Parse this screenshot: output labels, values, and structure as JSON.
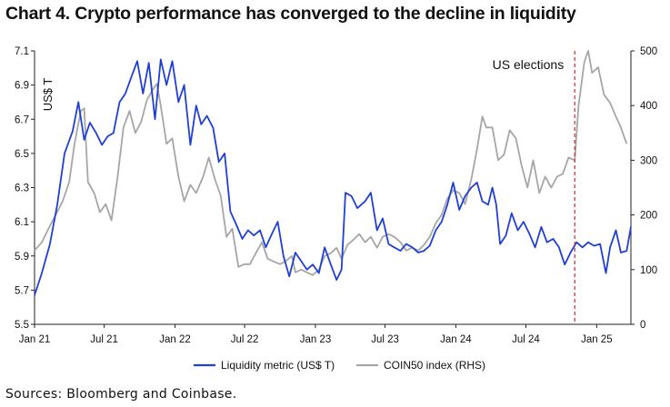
{
  "title": "Chart 4. Crypto performance has converged to the decline in liquidity",
  "source": "Sources: Bloomberg and Coinbase.",
  "chart_data": {
    "type": "line",
    "title": "Chart 4. Crypto performance has converged to the decline in liquidity",
    "left_axis": {
      "unit_label": "US$ T",
      "min": 5.5,
      "max": 7.1,
      "ticks": [
        "7.1",
        "6.9",
        "6.7",
        "6.5",
        "6.3",
        "6.1",
        "5.9",
        "5.7",
        "5.5"
      ]
    },
    "right_axis": {
      "min": 0,
      "max": 500,
      "ticks": [
        "500",
        "400",
        "300",
        "200",
        "100",
        "0"
      ]
    },
    "x_axis": {
      "min": "2021-01-01",
      "max": "2025-03-31",
      "ticks": [
        {
          "label": "Jan 21",
          "date": "2021-01-01"
        },
        {
          "label": "Jul 21",
          "date": "2021-07-01"
        },
        {
          "label": "Jan 22",
          "date": "2022-01-01"
        },
        {
          "label": "Jul 22",
          "date": "2022-07-01"
        },
        {
          "label": "Jan 23",
          "date": "2023-01-01"
        },
        {
          "label": "Jul 23",
          "date": "2023-07-01"
        },
        {
          "label": "Jan 24",
          "date": "2024-01-01"
        },
        {
          "label": "Jul 24",
          "date": "2024-07-01"
        },
        {
          "label": "Jan 25",
          "date": "2025-01-01"
        }
      ]
    },
    "grid": false,
    "legend_position": "bottom-center",
    "annotation": {
      "text": "US elections",
      "date": "2024-11-05",
      "style": "dashed",
      "color": "#d62728"
    },
    "series": [
      {
        "name": "Liquidity metric (US$ T)",
        "axis": "left",
        "color": "#1f3fd6",
        "points": [
          [
            "2021-01-01",
            5.67
          ],
          [
            "2021-01-20",
            5.8
          ],
          [
            "2021-02-10",
            5.97
          ],
          [
            "2021-03-01",
            6.2
          ],
          [
            "2021-03-20",
            6.5
          ],
          [
            "2021-04-10",
            6.63
          ],
          [
            "2021-04-25",
            6.8
          ],
          [
            "2021-05-10",
            6.58
          ],
          [
            "2021-05-25",
            6.68
          ],
          [
            "2021-06-10",
            6.62
          ],
          [
            "2021-06-25",
            6.55
          ],
          [
            "2021-07-10",
            6.6
          ],
          [
            "2021-07-25",
            6.62
          ],
          [
            "2021-08-10",
            6.8
          ],
          [
            "2021-08-25",
            6.85
          ],
          [
            "2021-09-10",
            6.95
          ],
          [
            "2021-09-25",
            7.04
          ],
          [
            "2021-10-10",
            6.85
          ],
          [
            "2021-10-25",
            7.03
          ],
          [
            "2021-11-10",
            6.7
          ],
          [
            "2021-11-25",
            7.05
          ],
          [
            "2021-12-10",
            6.9
          ],
          [
            "2021-12-25",
            7.04
          ],
          [
            "2022-01-10",
            6.8
          ],
          [
            "2022-01-25",
            6.9
          ],
          [
            "2022-02-10",
            6.55
          ],
          [
            "2022-02-25",
            6.78
          ],
          [
            "2022-03-10",
            6.67
          ],
          [
            "2022-03-25",
            6.72
          ],
          [
            "2022-04-10",
            6.65
          ],
          [
            "2022-04-25",
            6.45
          ],
          [
            "2022-05-10",
            6.5
          ],
          [
            "2022-05-25",
            6.16
          ],
          [
            "2022-06-10",
            6.08
          ],
          [
            "2022-06-25",
            6.0
          ],
          [
            "2022-07-10",
            6.05
          ],
          [
            "2022-07-25",
            6.02
          ],
          [
            "2022-08-10",
            6.05
          ],
          [
            "2022-08-25",
            5.95
          ],
          [
            "2022-09-10",
            6.03
          ],
          [
            "2022-09-25",
            6.1
          ],
          [
            "2022-10-10",
            5.9
          ],
          [
            "2022-10-25",
            5.78
          ],
          [
            "2022-11-10",
            5.92
          ],
          [
            "2022-11-25",
            5.87
          ],
          [
            "2022-12-10",
            5.82
          ],
          [
            "2022-12-25",
            5.85
          ],
          [
            "2023-01-10",
            5.8
          ],
          [
            "2023-01-25",
            5.95
          ],
          [
            "2023-02-10",
            5.85
          ],
          [
            "2023-02-25",
            5.76
          ],
          [
            "2023-03-10",
            5.82
          ],
          [
            "2023-03-20",
            6.27
          ],
          [
            "2023-04-05",
            6.25
          ],
          [
            "2023-04-20",
            6.18
          ],
          [
            "2023-05-10",
            6.22
          ],
          [
            "2023-05-25",
            6.27
          ],
          [
            "2023-06-10",
            6.05
          ],
          [
            "2023-06-25",
            6.12
          ],
          [
            "2023-07-10",
            5.97
          ],
          [
            "2023-07-25",
            5.95
          ],
          [
            "2023-08-10",
            5.93
          ],
          [
            "2023-08-25",
            5.97
          ],
          [
            "2023-09-10",
            5.95
          ],
          [
            "2023-09-25",
            5.92
          ],
          [
            "2023-10-10",
            5.93
          ],
          [
            "2023-10-25",
            5.96
          ],
          [
            "2023-11-10",
            6.05
          ],
          [
            "2023-11-25",
            6.1
          ],
          [
            "2023-12-10",
            6.2
          ],
          [
            "2023-12-25",
            6.33
          ],
          [
            "2024-01-10",
            6.17
          ],
          [
            "2024-01-25",
            6.25
          ],
          [
            "2024-02-10",
            6.3
          ],
          [
            "2024-02-25",
            6.33
          ],
          [
            "2024-03-10",
            6.22
          ],
          [
            "2024-03-25",
            6.2
          ],
          [
            "2024-04-05",
            6.3
          ],
          [
            "2024-04-15",
            6.2
          ],
          [
            "2024-04-25",
            5.97
          ],
          [
            "2024-05-10",
            6.02
          ],
          [
            "2024-05-25",
            6.15
          ],
          [
            "2024-06-10",
            6.05
          ],
          [
            "2024-06-25",
            6.1
          ],
          [
            "2024-07-10",
            6.03
          ],
          [
            "2024-07-25",
            5.95
          ],
          [
            "2024-08-10",
            6.07
          ],
          [
            "2024-08-25",
            5.98
          ],
          [
            "2024-09-10",
            6.0
          ],
          [
            "2024-09-25",
            5.95
          ],
          [
            "2024-10-10",
            5.85
          ],
          [
            "2024-10-25",
            5.92
          ],
          [
            "2024-11-10",
            5.98
          ],
          [
            "2024-11-25",
            5.95
          ],
          [
            "2024-12-10",
            5.98
          ],
          [
            "2024-12-25",
            5.96
          ],
          [
            "2025-01-10",
            5.97
          ],
          [
            "2025-01-25",
            5.8
          ],
          [
            "2025-02-05",
            5.95
          ],
          [
            "2025-02-20",
            6.05
          ],
          [
            "2025-03-05",
            5.92
          ],
          [
            "2025-03-20",
            5.93
          ],
          [
            "2025-03-31",
            6.07
          ]
        ]
      },
      {
        "name": "COIN50 index (RHS)",
        "axis": "right",
        "color": "#a6a6a6",
        "points": [
          [
            "2021-01-01",
            135
          ],
          [
            "2021-01-20",
            150
          ],
          [
            "2021-02-10",
            180
          ],
          [
            "2021-02-25",
            200
          ],
          [
            "2021-03-15",
            225
          ],
          [
            "2021-04-01",
            260
          ],
          [
            "2021-04-15",
            330
          ],
          [
            "2021-05-01",
            390
          ],
          [
            "2021-05-10",
            395
          ],
          [
            "2021-05-20",
            260
          ],
          [
            "2021-06-05",
            240
          ],
          [
            "2021-06-20",
            205
          ],
          [
            "2021-07-05",
            220
          ],
          [
            "2021-07-20",
            190
          ],
          [
            "2021-08-05",
            270
          ],
          [
            "2021-08-20",
            360
          ],
          [
            "2021-09-05",
            390
          ],
          [
            "2021-09-20",
            350
          ],
          [
            "2021-10-05",
            370
          ],
          [
            "2021-10-20",
            410
          ],
          [
            "2021-11-05",
            430
          ],
          [
            "2021-11-15",
            440
          ],
          [
            "2021-11-25",
            400
          ],
          [
            "2021-12-10",
            330
          ],
          [
            "2021-12-25",
            340
          ],
          [
            "2022-01-10",
            270
          ],
          [
            "2022-01-25",
            225
          ],
          [
            "2022-02-10",
            255
          ],
          [
            "2022-02-25",
            240
          ],
          [
            "2022-03-15",
            270
          ],
          [
            "2022-03-30",
            305
          ],
          [
            "2022-04-15",
            265
          ],
          [
            "2022-04-30",
            235
          ],
          [
            "2022-05-15",
            160
          ],
          [
            "2022-05-30",
            175
          ],
          [
            "2022-06-15",
            105
          ],
          [
            "2022-06-30",
            110
          ],
          [
            "2022-07-15",
            110
          ],
          [
            "2022-07-30",
            130
          ],
          [
            "2022-08-15",
            150
          ],
          [
            "2022-08-30",
            120
          ],
          [
            "2022-09-15",
            115
          ],
          [
            "2022-10-01",
            110
          ],
          [
            "2022-10-15",
            115
          ],
          [
            "2022-11-01",
            125
          ],
          [
            "2022-11-10",
            95
          ],
          [
            "2022-11-25",
            100
          ],
          [
            "2022-12-10",
            95
          ],
          [
            "2022-12-25",
            90
          ],
          [
            "2023-01-10",
            100
          ],
          [
            "2023-01-25",
            125
          ],
          [
            "2023-02-10",
            130
          ],
          [
            "2023-02-25",
            140
          ],
          [
            "2023-03-10",
            120
          ],
          [
            "2023-03-25",
            145
          ],
          [
            "2023-04-10",
            155
          ],
          [
            "2023-04-25",
            165
          ],
          [
            "2023-05-10",
            150
          ],
          [
            "2023-05-25",
            160
          ],
          [
            "2023-06-10",
            140
          ],
          [
            "2023-06-25",
            160
          ],
          [
            "2023-07-10",
            165
          ],
          [
            "2023-07-25",
            160
          ],
          [
            "2023-08-10",
            150
          ],
          [
            "2023-08-25",
            135
          ],
          [
            "2023-09-10",
            140
          ],
          [
            "2023-09-25",
            135
          ],
          [
            "2023-10-10",
            145
          ],
          [
            "2023-10-25",
            160
          ],
          [
            "2023-11-10",
            185
          ],
          [
            "2023-11-25",
            200
          ],
          [
            "2023-12-10",
            230
          ],
          [
            "2023-12-25",
            245
          ],
          [
            "2024-01-10",
            240
          ],
          [
            "2024-01-25",
            220
          ],
          [
            "2024-02-10",
            265
          ],
          [
            "2024-02-25",
            320
          ],
          [
            "2024-03-10",
            380
          ],
          [
            "2024-03-20",
            360
          ],
          [
            "2024-04-05",
            360
          ],
          [
            "2024-04-20",
            300
          ],
          [
            "2024-05-05",
            310
          ],
          [
            "2024-05-20",
            355
          ],
          [
            "2024-06-05",
            340
          ],
          [
            "2024-06-20",
            290
          ],
          [
            "2024-07-05",
            250
          ],
          [
            "2024-07-20",
            300
          ],
          [
            "2024-08-05",
            240
          ],
          [
            "2024-08-20",
            270
          ],
          [
            "2024-09-05",
            250
          ],
          [
            "2024-09-20",
            270
          ],
          [
            "2024-10-05",
            275
          ],
          [
            "2024-10-20",
            305
          ],
          [
            "2024-11-05",
            300
          ],
          [
            "2024-11-15",
            400
          ],
          [
            "2024-11-30",
            480
          ],
          [
            "2024-12-10",
            500
          ],
          [
            "2024-12-20",
            460
          ],
          [
            "2025-01-05",
            470
          ],
          [
            "2025-01-20",
            420
          ],
          [
            "2025-02-05",
            405
          ],
          [
            "2025-02-20",
            380
          ],
          [
            "2025-03-05",
            360
          ],
          [
            "2025-03-20",
            330
          ]
        ]
      }
    ]
  }
}
